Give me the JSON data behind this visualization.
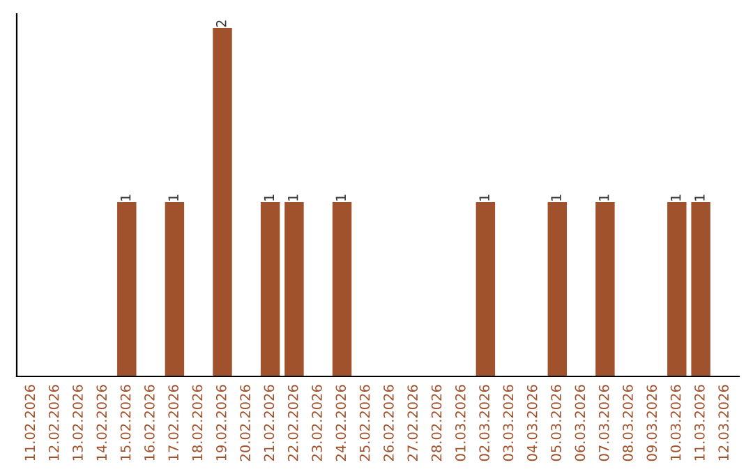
{
  "chart_data": {
    "type": "bar",
    "categories": [
      "11.02.2026",
      "12.02.2026",
      "13.02.2026",
      "14.02.2026",
      "15.02.2026",
      "16.02.2026",
      "17.02.2026",
      "18.02.2026",
      "19.02.2026",
      "20.02.2026",
      "21.02.2026",
      "22.02.2026",
      "23.02.2026",
      "24.02.2026",
      "25.02.2026",
      "26.02.2026",
      "27.02.2026",
      "28.02.2026",
      "01.03.2026",
      "02.03.2026",
      "03.03.2026",
      "04.03.2026",
      "05.03.2026",
      "06.03.2026",
      "07.03.2026",
      "08.03.2026",
      "09.03.2026",
      "10.03.2026",
      "11.03.2026",
      "12.03.2026"
    ],
    "values": [
      0,
      0,
      0,
      0,
      1,
      0,
      1,
      0,
      2,
      0,
      1,
      1,
      0,
      1,
      0,
      0,
      0,
      0,
      0,
      1,
      0,
      0,
      1,
      0,
      1,
      0,
      0,
      1,
      1,
      0
    ],
    "value_labels": [
      null,
      null,
      null,
      null,
      "1",
      null,
      "1",
      null,
      "2",
      null,
      "1",
      "1",
      null,
      "1",
      null,
      null,
      null,
      null,
      null,
      "1",
      null,
      null,
      "1",
      null,
      "1",
      null,
      null,
      "1",
      "1",
      null
    ],
    "color": "#a0522d",
    "ylim": [
      0,
      2.08
    ],
    "tick_labels": "x"
  }
}
